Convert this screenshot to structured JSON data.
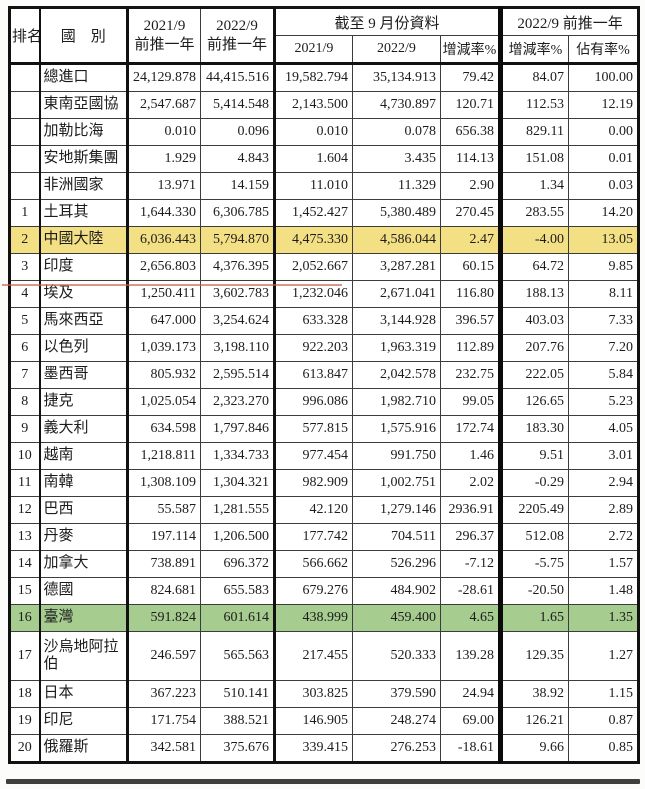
{
  "table": {
    "header": {
      "rank": "排名",
      "country": "國　別",
      "prior2021": {
        "line1": "2021/9",
        "line2": "前推一年"
      },
      "prior2022": {
        "line1": "2022/9",
        "line2": "前推一年"
      },
      "asof_group": "截至 9 月份資料",
      "asof_2021": "2021/9",
      "asof_2022": "2022/9",
      "asof_change": "增減率%",
      "prior_group": "2022/9 前推一年",
      "prior_change": "增減率%",
      "prior_share": "佔有率%"
    },
    "rows": [
      {
        "rank": "",
        "country": "總進口",
        "values": [
          "24,129.878",
          "44,415.516",
          "19,582.794",
          "35,134.913",
          "79.42",
          "84.07",
          "100.00"
        ]
      },
      {
        "rank": "",
        "country": "東南亞國協",
        "values": [
          "2,547.687",
          "5,414.548",
          "2,143.500",
          "4,730.897",
          "120.71",
          "112.53",
          "12.19"
        ]
      },
      {
        "rank": "",
        "country": "加勒比海",
        "values": [
          "0.010",
          "0.096",
          "0.010",
          "0.078",
          "656.38",
          "829.11",
          "0.00"
        ]
      },
      {
        "rank": "",
        "country": "安地斯集團",
        "values": [
          "1.929",
          "4.843",
          "1.604",
          "3.435",
          "114.13",
          "151.08",
          "0.01"
        ]
      },
      {
        "rank": "",
        "country": "非洲國家",
        "values": [
          "13.971",
          "14.159",
          "11.010",
          "11.329",
          "2.90",
          "1.34",
          "0.03"
        ]
      },
      {
        "rank": "1",
        "country": "土耳其",
        "values": [
          "1,644.330",
          "6,306.785",
          "1,452.427",
          "5,380.489",
          "270.45",
          "283.55",
          "14.20"
        ]
      },
      {
        "rank": "2",
        "country": "中國大陸",
        "values": [
          "6,036.443",
          "5,794.870",
          "4,475.330",
          "4,586.044",
          "2.47",
          "-4.00",
          "13.05"
        ],
        "highlight": "yellow"
      },
      {
        "rank": "3",
        "country": "印度",
        "values": [
          "2,656.803",
          "4,376.395",
          "2,052.667",
          "3,287.281",
          "60.15",
          "64.72",
          "9.85"
        ]
      },
      {
        "rank": "4",
        "country": "埃及",
        "values": [
          "1,250.411",
          "3,602.783",
          "1,232.046",
          "2,671.041",
          "116.80",
          "188.13",
          "8.11"
        ]
      },
      {
        "rank": "5",
        "country": "馬來西亞",
        "values": [
          "647.000",
          "3,254.624",
          "633.328",
          "3,144.928",
          "396.57",
          "403.03",
          "7.33"
        ]
      },
      {
        "rank": "6",
        "country": "以色列",
        "values": [
          "1,039.173",
          "3,198.110",
          "922.203",
          "1,963.319",
          "112.89",
          "207.76",
          "7.20"
        ]
      },
      {
        "rank": "7",
        "country": "墨西哥",
        "values": [
          "805.932",
          "2,595.514",
          "613.847",
          "2,042.578",
          "232.75",
          "222.05",
          "5.84"
        ]
      },
      {
        "rank": "8",
        "country": "捷克",
        "values": [
          "1,025.054",
          "2,323.270",
          "996.086",
          "1,982.710",
          "99.05",
          "126.65",
          "5.23"
        ]
      },
      {
        "rank": "9",
        "country": "義大利",
        "values": [
          "634.598",
          "1,797.846",
          "577.815",
          "1,575.916",
          "172.74",
          "183.30",
          "4.05"
        ]
      },
      {
        "rank": "10",
        "country": "越南",
        "values": [
          "1,218.811",
          "1,334.733",
          "977.454",
          "991.750",
          "1.46",
          "9.51",
          "3.01"
        ]
      },
      {
        "rank": "11",
        "country": "南韓",
        "values": [
          "1,308.109",
          "1,304.321",
          "982.909",
          "1,002.751",
          "2.02",
          "-0.29",
          "2.94"
        ]
      },
      {
        "rank": "12",
        "country": "巴西",
        "values": [
          "55.587",
          "1,281.555",
          "42.120",
          "1,279.146",
          "2936.91",
          "2205.49",
          "2.89"
        ]
      },
      {
        "rank": "13",
        "country": "丹麥",
        "values": [
          "197.114",
          "1,206.500",
          "177.742",
          "704.511",
          "296.37",
          "512.08",
          "2.72"
        ]
      },
      {
        "rank": "14",
        "country": "加拿大",
        "values": [
          "738.891",
          "696.372",
          "566.662",
          "526.296",
          "-7.12",
          "-5.75",
          "1.57"
        ]
      },
      {
        "rank": "15",
        "country": "德國",
        "values": [
          "824.681",
          "655.583",
          "679.276",
          "484.902",
          "-28.61",
          "-20.50",
          "1.48"
        ]
      },
      {
        "rank": "16",
        "country": "臺灣",
        "values": [
          "591.824",
          "601.614",
          "438.999",
          "459.400",
          "4.65",
          "1.65",
          "1.35"
        ],
        "highlight": "green"
      },
      {
        "rank": "17",
        "country": "沙烏地阿拉伯",
        "values": [
          "246.597",
          "565.563",
          "217.455",
          "520.333",
          "139.28",
          "129.35",
          "1.27"
        ],
        "tall": true
      },
      {
        "rank": "18",
        "country": "日本",
        "values": [
          "367.223",
          "510.141",
          "303.825",
          "379.590",
          "24.94",
          "38.92",
          "1.15"
        ]
      },
      {
        "rank": "19",
        "country": "印尼",
        "values": [
          "171.754",
          "388.521",
          "146.905",
          "248.274",
          "69.00",
          "126.21",
          "0.87"
        ]
      },
      {
        "rank": "20",
        "country": "俄羅斯",
        "values": [
          "342.581",
          "375.676",
          "339.415",
          "276.253",
          "-18.61",
          "9.66",
          "0.85"
        ]
      }
    ],
    "colors": {
      "highlight_yellow": "#f3e084",
      "highlight_green": "#a6cc8f",
      "red_line": "#cc5a4a"
    }
  }
}
